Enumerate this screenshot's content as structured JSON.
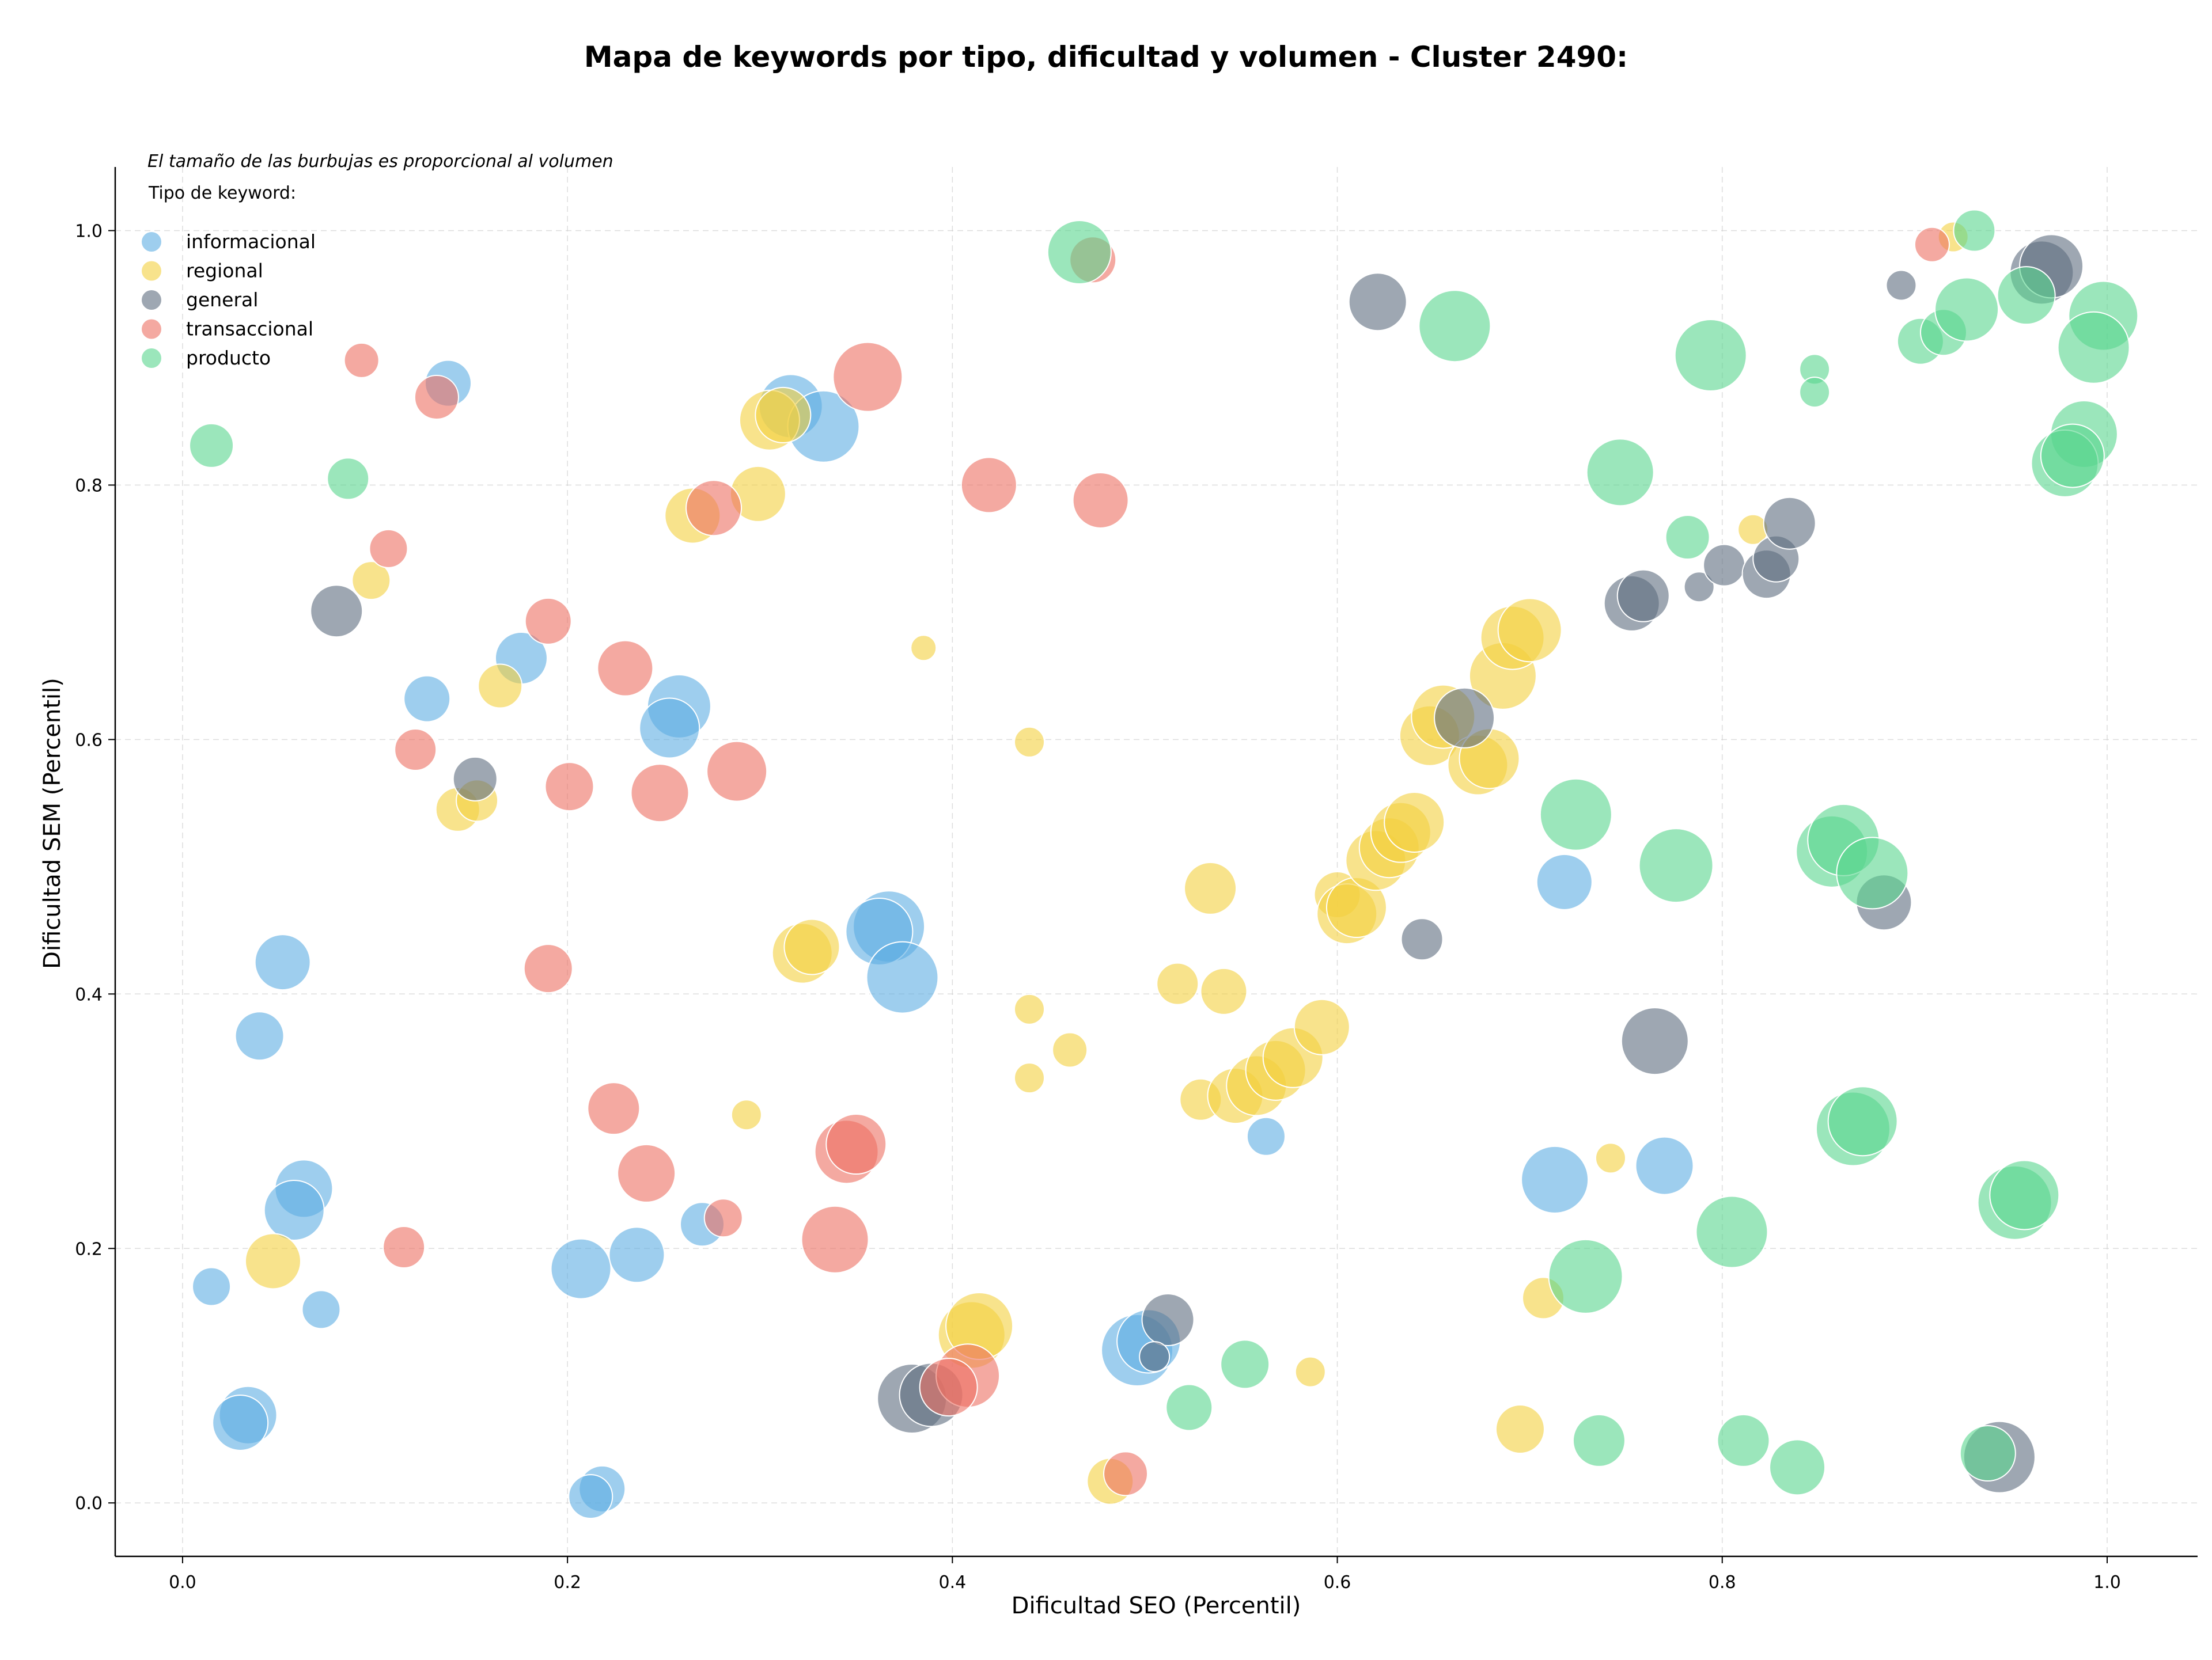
{
  "chart_data": {
    "type": "scatter",
    "title": "Mapa de keywords por tipo, dificultad y volumen - Cluster 2490:",
    "xlabel": "Dificultad SEO (Percentil)",
    "ylabel": "Dificultad SEM (Percentil)",
    "xlim": [
      -0.035,
      1.047
    ],
    "ylim": [
      -0.042,
      1.05
    ],
    "xticks": [
      "0.0",
      "0.2",
      "0.4",
      "0.6",
      "0.8",
      "1.0"
    ],
    "yticks": [
      "0.0",
      "0.2",
      "0.4",
      "0.6",
      "0.8",
      "1.0"
    ],
    "grid": true,
    "note": "El tamaño de las burbujas es proporcional al volumen",
    "legend_title": "Tipo de keyword:",
    "legend_position": "top-left",
    "series": [
      {
        "name": "informacional",
        "color": "#5dade2",
        "points": [
          [
            0.138,
            0.88,
            40
          ],
          [
            0.316,
            0.862,
            55
          ],
          [
            0.333,
            0.846,
            62
          ],
          [
            0.127,
            0.632,
            40
          ],
          [
            0.176,
            0.664,
            45
          ],
          [
            0.258,
            0.626,
            55
          ],
          [
            0.253,
            0.609,
            52
          ],
          [
            0.052,
            0.425,
            48
          ],
          [
            0.04,
            0.367,
            42
          ],
          [
            0.367,
            0.453,
            62
          ],
          [
            0.362,
            0.449,
            58
          ],
          [
            0.374,
            0.413,
            62
          ],
          [
            0.063,
            0.247,
            50
          ],
          [
            0.058,
            0.23,
            52
          ],
          [
            0.015,
            0.17,
            33
          ],
          [
            0.072,
            0.152,
            33
          ],
          [
            0.207,
            0.184,
            52
          ],
          [
            0.236,
            0.195,
            48
          ],
          [
            0.27,
            0.219,
            38
          ],
          [
            0.563,
            0.288,
            33
          ],
          [
            0.718,
            0.488,
            48
          ],
          [
            0.713,
            0.254,
            58
          ],
          [
            0.77,
            0.265,
            50
          ],
          [
            0.496,
            0.12,
            62
          ],
          [
            0.502,
            0.127,
            55
          ],
          [
            0.034,
            0.069,
            50
          ],
          [
            0.03,
            0.063,
            48
          ],
          [
            0.218,
            0.011,
            40
          ],
          [
            0.212,
            0.005,
            38
          ]
        ]
      },
      {
        "name": "regional",
        "color": "#f4d03f",
        "points": [
          [
            0.305,
            0.851,
            52
          ],
          [
            0.312,
            0.855,
            48
          ],
          [
            0.299,
            0.793,
            48
          ],
          [
            0.265,
            0.776,
            48
          ],
          [
            0.098,
            0.725,
            33
          ],
          [
            0.165,
            0.642,
            38
          ],
          [
            0.385,
            0.672,
            22
          ],
          [
            0.44,
            0.598,
            26
          ],
          [
            0.143,
            0.545,
            38
          ],
          [
            0.153,
            0.552,
            36
          ],
          [
            0.322,
            0.432,
            52
          ],
          [
            0.327,
            0.437,
            48
          ],
          [
            0.44,
            0.388,
            26
          ],
          [
            0.461,
            0.356,
            30
          ],
          [
            0.44,
            0.334,
            26
          ],
          [
            0.293,
            0.305,
            26
          ],
          [
            0.047,
            0.19,
            48
          ],
          [
            0.41,
            0.132,
            58
          ],
          [
            0.414,
            0.139,
            58
          ],
          [
            0.586,
            0.103,
            26
          ],
          [
            0.482,
            0.017,
            40
          ],
          [
            0.695,
            0.058,
            42
          ],
          [
            0.707,
            0.161,
            36
          ],
          [
            0.742,
            0.271,
            26
          ],
          [
            0.534,
            0.483,
            45
          ],
          [
            0.517,
            0.408,
            36
          ],
          [
            0.541,
            0.402,
            40
          ],
          [
            0.529,
            0.317,
            36
          ],
          [
            0.547,
            0.32,
            48
          ],
          [
            0.558,
            0.328,
            52
          ],
          [
            0.568,
            0.34,
            52
          ],
          [
            0.577,
            0.35,
            52
          ],
          [
            0.592,
            0.374,
            48
          ],
          [
            0.6,
            0.478,
            40
          ],
          [
            0.605,
            0.463,
            52
          ],
          [
            0.61,
            0.468,
            52
          ],
          [
            0.62,
            0.505,
            52
          ],
          [
            0.627,
            0.515,
            52
          ],
          [
            0.633,
            0.527,
            52
          ],
          [
            0.64,
            0.535,
            52
          ],
          [
            0.648,
            0.603,
            52
          ],
          [
            0.655,
            0.618,
            55
          ],
          [
            0.673,
            0.58,
            52
          ],
          [
            0.679,
            0.585,
            52
          ],
          [
            0.686,
            0.65,
            58
          ],
          [
            0.691,
            0.68,
            55
          ],
          [
            0.7,
            0.686,
            55
          ],
          [
            0.816,
            0.765,
            26
          ],
          [
            0.92,
            0.995,
            26
          ]
        ]
      },
      {
        "name": "general",
        "color": "#5d6d7e",
        "points": [
          [
            0.08,
            0.701,
            45
          ],
          [
            0.152,
            0.569,
            38
          ],
          [
            0.621,
            0.944,
            50
          ],
          [
            0.644,
            0.443,
            36
          ],
          [
            0.666,
            0.617,
            52
          ],
          [
            0.753,
            0.707,
            48
          ],
          [
            0.759,
            0.713,
            45
          ],
          [
            0.765,
            0.363,
            58
          ],
          [
            0.788,
            0.72,
            26
          ],
          [
            0.801,
            0.737,
            36
          ],
          [
            0.823,
            0.73,
            42
          ],
          [
            0.828,
            0.742,
            40
          ],
          [
            0.835,
            0.77,
            45
          ],
          [
            0.884,
            0.472,
            48
          ],
          [
            0.893,
            0.957,
            26
          ],
          [
            0.944,
            0.036,
            62
          ],
          [
            0.966,
            0.967,
            55
          ],
          [
            0.971,
            0.972,
            55
          ],
          [
            0.512,
            0.144,
            45
          ],
          [
            0.505,
            0.115,
            26
          ],
          [
            0.379,
            0.082,
            60
          ],
          [
            0.389,
            0.085,
            55
          ]
        ]
      },
      {
        "name": "transaccional",
        "color": "#ec7063",
        "points": [
          [
            0.093,
            0.898,
            30
          ],
          [
            0.132,
            0.869,
            38
          ],
          [
            0.356,
            0.885,
            60
          ],
          [
            0.276,
            0.782,
            48
          ],
          [
            0.107,
            0.75,
            33
          ],
          [
            0.19,
            0.693,
            40
          ],
          [
            0.419,
            0.8,
            48
          ],
          [
            0.477,
            0.788,
            48
          ],
          [
            0.23,
            0.656,
            48
          ],
          [
            0.121,
            0.592,
            36
          ],
          [
            0.201,
            0.563,
            42
          ],
          [
            0.248,
            0.558,
            50
          ],
          [
            0.288,
            0.575,
            52
          ],
          [
            0.19,
            0.42,
            42
          ],
          [
            0.224,
            0.31,
            45
          ],
          [
            0.241,
            0.259,
            50
          ],
          [
            0.281,
            0.224,
            33
          ],
          [
            0.115,
            0.201,
            36
          ],
          [
            0.345,
            0.276,
            55
          ],
          [
            0.35,
            0.282,
            52
          ],
          [
            0.339,
            0.207,
            58
          ],
          [
            0.408,
            0.1,
            55
          ],
          [
            0.398,
            0.091,
            50
          ],
          [
            0.49,
            0.023,
            38
          ],
          [
            0.473,
            0.977,
            40
          ],
          [
            0.909,
            0.989,
            30
          ]
        ]
      },
      {
        "name": "producto",
        "color": "#58d68d",
        "points": [
          [
            0.015,
            0.831,
            38
          ],
          [
            0.086,
            0.805,
            36
          ],
          [
            0.466,
            0.983,
            55
          ],
          [
            0.661,
            0.925,
            62
          ],
          [
            0.747,
            0.81,
            58
          ],
          [
            0.782,
            0.759,
            38
          ],
          [
            0.794,
            0.902,
            62
          ],
          [
            0.848,
            0.891,
            26
          ],
          [
            0.848,
            0.873,
            26
          ],
          [
            0.903,
            0.913,
            40
          ],
          [
            0.915,
            0.92,
            40
          ],
          [
            0.927,
            0.938,
            55
          ],
          [
            0.931,
            1.0,
            36
          ],
          [
            0.958,
            0.949,
            50
          ],
          [
            0.988,
            0.84,
            58
          ],
          [
            0.998,
            0.933,
            60
          ],
          [
            0.993,
            0.908,
            62
          ],
          [
            0.978,
            0.817,
            58
          ],
          [
            0.982,
            0.823,
            55
          ],
          [
            0.724,
            0.541,
            62
          ],
          [
            0.776,
            0.501,
            64
          ],
          [
            0.857,
            0.512,
            62
          ],
          [
            0.863,
            0.521,
            62
          ],
          [
            0.878,
            0.495,
            62
          ],
          [
            0.868,
            0.294,
            64
          ],
          [
            0.873,
            0.3,
            60
          ],
          [
            0.729,
            0.178,
            64
          ],
          [
            0.805,
            0.213,
            62
          ],
          [
            0.952,
            0.236,
            64
          ],
          [
            0.957,
            0.242,
            60
          ],
          [
            0.552,
            0.109,
            42
          ],
          [
            0.523,
            0.075,
            40
          ],
          [
            0.736,
            0.049,
            45
          ],
          [
            0.811,
            0.049,
            45
          ],
          [
            0.839,
            0.028,
            48
          ],
          [
            0.938,
            0.039,
            48
          ]
        ]
      }
    ]
  }
}
